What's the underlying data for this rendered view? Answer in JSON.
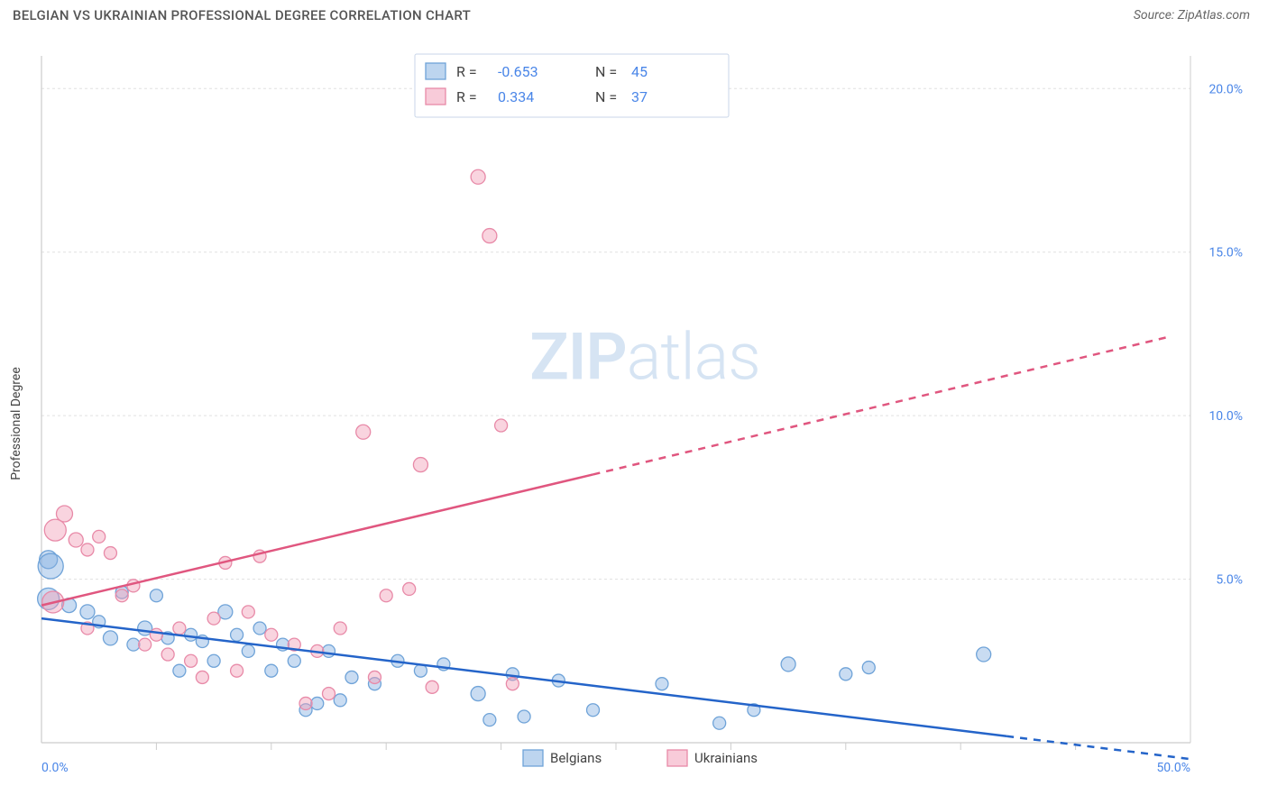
{
  "header": {
    "title": "BELGIAN VS UKRAINIAN PROFESSIONAL DEGREE CORRELATION CHART",
    "source_label": "Source: ZipAtlas.com"
  },
  "chart": {
    "type": "scatter",
    "ylabel": "Professional Degree",
    "watermark": "ZIPatlas",
    "background_color": "#ffffff",
    "grid_color": "#e0e0e0",
    "grid_dash": "3,3",
    "axis_color": "#cccccc",
    "tick_color": "#cccccc",
    "xlim": [
      0,
      50
    ],
    "ylim": [
      0,
      21
    ],
    "xtick_step": 5,
    "ytick_step": 5,
    "xtick_labels": [
      {
        "v": 0,
        "label": "0.0%"
      },
      {
        "v": 50,
        "label": "50.0%"
      }
    ],
    "ytick_labels": [
      {
        "v": 5,
        "label": "5.0%"
      },
      {
        "v": 10,
        "label": "10.0%"
      },
      {
        "v": 15,
        "label": "15.0%"
      },
      {
        "v": 20,
        "label": "20.0%"
      }
    ],
    "tick_label_color": "#4a86e8",
    "tick_label_fontsize": 14,
    "series": [
      {
        "key": "belgians",
        "label": "Belgians",
        "color_fill": "rgba(135,178,226,0.45)",
        "color_stroke": "#6fa3d8",
        "trend_color": "#2464c9",
        "trend_width": 2.5,
        "trend_y0": 3.8,
        "trend_y50_solid_x": 42,
        "trend_y50_solid_y": 0.2,
        "trend_dash_end_x": 50,
        "trend_dash_end_y": -0.5,
        "R": "-0.653",
        "N": "45",
        "points": [
          {
            "x": 0.3,
            "y": 5.6,
            "r": 10
          },
          {
            "x": 0.4,
            "y": 5.4,
            "r": 14
          },
          {
            "x": 0.3,
            "y": 4.4,
            "r": 12
          },
          {
            "x": 1.2,
            "y": 4.2,
            "r": 8
          },
          {
            "x": 2.0,
            "y": 4.0,
            "r": 8
          },
          {
            "x": 2.5,
            "y": 3.7,
            "r": 7
          },
          {
            "x": 3.0,
            "y": 3.2,
            "r": 8
          },
          {
            "x": 3.5,
            "y": 4.6,
            "r": 7
          },
          {
            "x": 4.0,
            "y": 3.0,
            "r": 7
          },
          {
            "x": 4.5,
            "y": 3.5,
            "r": 8
          },
          {
            "x": 5.0,
            "y": 4.5,
            "r": 7
          },
          {
            "x": 5.5,
            "y": 3.2,
            "r": 7
          },
          {
            "x": 6.0,
            "y": 2.2,
            "r": 7
          },
          {
            "x": 6.5,
            "y": 3.3,
            "r": 7
          },
          {
            "x": 7.0,
            "y": 3.1,
            "r": 7
          },
          {
            "x": 7.5,
            "y": 2.5,
            "r": 7
          },
          {
            "x": 8.0,
            "y": 4.0,
            "r": 8
          },
          {
            "x": 8.5,
            "y": 3.3,
            "r": 7
          },
          {
            "x": 9.0,
            "y": 2.8,
            "r": 7
          },
          {
            "x": 9.5,
            "y": 3.5,
            "r": 7
          },
          {
            "x": 10.0,
            "y": 2.2,
            "r": 7
          },
          {
            "x": 10.5,
            "y": 3.0,
            "r": 7
          },
          {
            "x": 11.0,
            "y": 2.5,
            "r": 7
          },
          {
            "x": 11.5,
            "y": 1.0,
            "r": 7
          },
          {
            "x": 12.0,
            "y": 1.2,
            "r": 7
          },
          {
            "x": 12.5,
            "y": 2.8,
            "r": 7
          },
          {
            "x": 13.0,
            "y": 1.3,
            "r": 7
          },
          {
            "x": 13.5,
            "y": 2.0,
            "r": 7
          },
          {
            "x": 14.5,
            "y": 1.8,
            "r": 7
          },
          {
            "x": 15.5,
            "y": 2.5,
            "r": 7
          },
          {
            "x": 16.5,
            "y": 2.2,
            "r": 7
          },
          {
            "x": 17.5,
            "y": 2.4,
            "r": 7
          },
          {
            "x": 19.0,
            "y": 1.5,
            "r": 8
          },
          {
            "x": 19.5,
            "y": 0.7,
            "r": 7
          },
          {
            "x": 20.5,
            "y": 2.1,
            "r": 7
          },
          {
            "x": 21.0,
            "y": 0.8,
            "r": 7
          },
          {
            "x": 22.5,
            "y": 1.9,
            "r": 7
          },
          {
            "x": 24.0,
            "y": 1.0,
            "r": 7
          },
          {
            "x": 27.0,
            "y": 1.8,
            "r": 7
          },
          {
            "x": 29.5,
            "y": 0.6,
            "r": 7
          },
          {
            "x": 31.0,
            "y": 1.0,
            "r": 7
          },
          {
            "x": 32.5,
            "y": 2.4,
            "r": 8
          },
          {
            "x": 35.0,
            "y": 2.1,
            "r": 7
          },
          {
            "x": 36.0,
            "y": 2.3,
            "r": 7
          },
          {
            "x": 41.0,
            "y": 2.7,
            "r": 8
          }
        ]
      },
      {
        "key": "ukrainians",
        "label": "Ukrainians",
        "color_fill": "rgba(242,160,185,0.45)",
        "color_stroke": "#e88aa8",
        "trend_color": "#e0567f",
        "trend_width": 2.5,
        "trend_y0": 4.2,
        "trend_y50_solid_x": 24,
        "trend_y50_solid_y": 8.2,
        "trend_dash_end_x": 49,
        "trend_dash_end_y": 12.4,
        "R": "0.334",
        "N": "37",
        "points": [
          {
            "x": 0.5,
            "y": 4.3,
            "r": 12
          },
          {
            "x": 1.0,
            "y": 7.0,
            "r": 9
          },
          {
            "x": 0.6,
            "y": 6.5,
            "r": 12
          },
          {
            "x": 1.5,
            "y": 6.2,
            "r": 8
          },
          {
            "x": 2.0,
            "y": 5.9,
            "r": 7
          },
          {
            "x": 2.5,
            "y": 6.3,
            "r": 7
          },
          {
            "x": 3.0,
            "y": 5.8,
            "r": 7
          },
          {
            "x": 3.5,
            "y": 4.5,
            "r": 7
          },
          {
            "x": 2.0,
            "y": 3.5,
            "r": 7
          },
          {
            "x": 4.0,
            "y": 4.8,
            "r": 7
          },
          {
            "x": 4.5,
            "y": 3.0,
            "r": 7
          },
          {
            "x": 5.0,
            "y": 3.3,
            "r": 7
          },
          {
            "x": 5.5,
            "y": 2.7,
            "r": 7
          },
          {
            "x": 6.0,
            "y": 3.5,
            "r": 7
          },
          {
            "x": 6.5,
            "y": 2.5,
            "r": 7
          },
          {
            "x": 7.0,
            "y": 2.0,
            "r": 7
          },
          {
            "x": 7.5,
            "y": 3.8,
            "r": 7
          },
          {
            "x": 8.0,
            "y": 5.5,
            "r": 7
          },
          {
            "x": 8.5,
            "y": 2.2,
            "r": 7
          },
          {
            "x": 9.0,
            "y": 4.0,
            "r": 7
          },
          {
            "x": 9.5,
            "y": 5.7,
            "r": 7
          },
          {
            "x": 10.0,
            "y": 3.3,
            "r": 7
          },
          {
            "x": 11.0,
            "y": 3.0,
            "r": 7
          },
          {
            "x": 11.5,
            "y": 1.2,
            "r": 7
          },
          {
            "x": 12.0,
            "y": 2.8,
            "r": 7
          },
          {
            "x": 12.5,
            "y": 1.5,
            "r": 7
          },
          {
            "x": 13.0,
            "y": 3.5,
            "r": 7
          },
          {
            "x": 14.0,
            "y": 9.5,
            "r": 8
          },
          {
            "x": 14.5,
            "y": 2.0,
            "r": 7
          },
          {
            "x": 15.0,
            "y": 4.5,
            "r": 7
          },
          {
            "x": 16.0,
            "y": 4.7,
            "r": 7
          },
          {
            "x": 16.5,
            "y": 8.5,
            "r": 8
          },
          {
            "x": 17.0,
            "y": 1.7,
            "r": 7
          },
          {
            "x": 19.0,
            "y": 17.3,
            "r": 8
          },
          {
            "x": 19.5,
            "y": 15.5,
            "r": 8
          },
          {
            "x": 20.0,
            "y": 9.7,
            "r": 7
          },
          {
            "x": 20.5,
            "y": 1.8,
            "r": 7
          }
        ]
      }
    ],
    "legend_box": {
      "items": [
        {
          "swatch_fill": "rgba(135,178,226,0.55)",
          "swatch_stroke": "#6fa3d8",
          "r_label": "R =",
          "r_val": "-0.653",
          "n_label": "N =",
          "n_val": "45"
        },
        {
          "swatch_fill": "rgba(242,160,185,0.55)",
          "swatch_stroke": "#e88aa8",
          "r_label": "R =",
          "r_val": " 0.334",
          "n_label": "N =",
          "n_val": "37"
        }
      ],
      "border_color": "#c9d6e8",
      "value_color": "#4a86e8",
      "label_color": "#444"
    },
    "bottom_legend": [
      {
        "key": "belgians",
        "label": "Belgians",
        "swatch_fill": "rgba(135,178,226,0.55)",
        "swatch_stroke": "#6fa3d8"
      },
      {
        "key": "ukrainians",
        "label": "Ukrainians",
        "swatch_fill": "rgba(242,160,185,0.55)",
        "swatch_stroke": "#e88aa8"
      }
    ]
  }
}
